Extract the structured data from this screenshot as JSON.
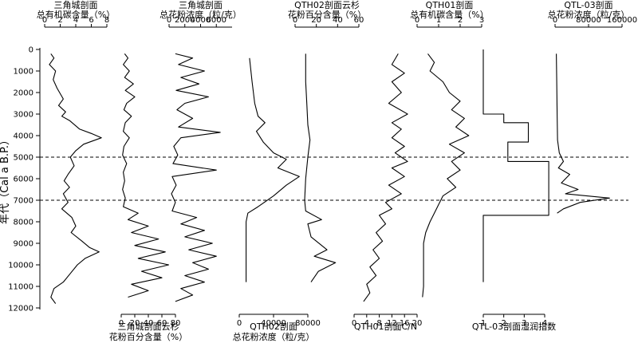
{
  "figure": {
    "y_axis_label": "年代（Cal a B.P.）",
    "y_ticks": [
      0,
      1000,
      2000,
      3000,
      4000,
      5000,
      6000,
      7000,
      8000,
      9000,
      10000,
      11000,
      12000
    ],
    "y_range": [
      0,
      12000
    ],
    "reference_lines": [
      5000,
      7000
    ]
  },
  "chart_data": [
    {
      "type": "line",
      "key": "p1",
      "title_lines": [
        "三角城剖面",
        "总有机碳含量（%）"
      ],
      "axis_pos": "top",
      "xlim": [
        0,
        8
      ],
      "ticks": [
        0,
        2,
        4,
        6,
        8
      ],
      "tick_labels": [
        "0",
        "2",
        "4",
        "6",
        "8"
      ],
      "points": [
        [
          0.8,
          200
        ],
        [
          1.2,
          400
        ],
        [
          0.6,
          700
        ],
        [
          1.4,
          1000
        ],
        [
          1.1,
          1400
        ],
        [
          1.6,
          1800
        ],
        [
          2.4,
          2300
        ],
        [
          1.8,
          2600
        ],
        [
          2.7,
          2900
        ],
        [
          2.2,
          3100
        ],
        [
          3.2,
          3300
        ],
        [
          4.5,
          3700
        ],
        [
          6.0,
          3900
        ],
        [
          7.3,
          4100
        ],
        [
          5.0,
          4400
        ],
        [
          4.0,
          4700
        ],
        [
          3.3,
          5000
        ],
        [
          3.8,
          5400
        ],
        [
          3.0,
          5800
        ],
        [
          2.5,
          6100
        ],
        [
          3.2,
          6400
        ],
        [
          2.4,
          6700
        ],
        [
          3.0,
          7100
        ],
        [
          2.2,
          7400
        ],
        [
          3.5,
          7800
        ],
        [
          4.0,
          8200
        ],
        [
          3.4,
          8500
        ],
        [
          4.8,
          8900
        ],
        [
          5.8,
          9200
        ],
        [
          7.0,
          9400
        ],
        [
          5.2,
          9700
        ],
        [
          4.2,
          10000
        ],
        [
          3.3,
          10400
        ],
        [
          2.4,
          10800
        ],
        [
          1.2,
          11100
        ],
        [
          0.8,
          11500
        ],
        [
          1.4,
          11800
        ]
      ]
    },
    {
      "type": "line",
      "key": "p2",
      "title_lines": [
        "三角城剖面云杉",
        "花粉百分含量（%）"
      ],
      "axis_pos": "bottom",
      "xlim": [
        0,
        80
      ],
      "ticks": [
        0,
        20,
        40,
        60,
        80
      ],
      "tick_labels": [
        "0",
        "20",
        "40",
        "60",
        "80"
      ],
      "points": [
        [
          5,
          200
        ],
        [
          10,
          400
        ],
        [
          3,
          700
        ],
        [
          12,
          1000
        ],
        [
          5,
          1300
        ],
        [
          18,
          1600
        ],
        [
          6,
          1900
        ],
        [
          20,
          2200
        ],
        [
          8,
          2500
        ],
        [
          4,
          2800
        ],
        [
          15,
          3100
        ],
        [
          6,
          3400
        ],
        [
          3,
          3800
        ],
        [
          12,
          4100
        ],
        [
          4,
          4500
        ],
        [
          2,
          4900
        ],
        [
          8,
          5300
        ],
        [
          3,
          5700
        ],
        [
          5,
          6100
        ],
        [
          2,
          6500
        ],
        [
          6,
          6900
        ],
        [
          3,
          7300
        ],
        [
          25,
          7600
        ],
        [
          10,
          7900
        ],
        [
          40,
          8200
        ],
        [
          15,
          8500
        ],
        [
          55,
          8800
        ],
        [
          20,
          9100
        ],
        [
          65,
          9400
        ],
        [
          25,
          9700
        ],
        [
          70,
          10000
        ],
        [
          30,
          10300
        ],
        [
          60,
          10600
        ],
        [
          15,
          10900
        ],
        [
          40,
          11200
        ],
        [
          10,
          11500
        ]
      ]
    },
    {
      "type": "line",
      "key": "p3",
      "title_lines": [
        "三角城剖面",
        "总花粉浓度（粒/克）"
      ],
      "axis_pos": "top",
      "xlim": [
        0,
        8000
      ],
      "ticks": [
        0,
        2000,
        4000,
        6000
      ],
      "tick_labels": [
        "0",
        "2000",
        "4000",
        "6000"
      ],
      "points": [
        [
          800,
          200
        ],
        [
          3000,
          400
        ],
        [
          1200,
          700
        ],
        [
          4500,
          1000
        ],
        [
          1500,
          1300
        ],
        [
          3800,
          1600
        ],
        [
          900,
          1900
        ],
        [
          5000,
          2200
        ],
        [
          2000,
          2500
        ],
        [
          1000,
          2800
        ],
        [
          3000,
          3200
        ],
        [
          1200,
          3600
        ],
        [
          6500,
          3850
        ],
        [
          1500,
          4100
        ],
        [
          600,
          4500
        ],
        [
          1100,
          4900
        ],
        [
          500,
          5300
        ],
        [
          6000,
          5600
        ],
        [
          400,
          5900
        ],
        [
          900,
          6300
        ],
        [
          300,
          6700
        ],
        [
          800,
          7100
        ],
        [
          400,
          7500
        ],
        [
          3500,
          7800
        ],
        [
          1500,
          8100
        ],
        [
          4500,
          8400
        ],
        [
          2000,
          8700
        ],
        [
          5500,
          9000
        ],
        [
          2500,
          9300
        ],
        [
          6000,
          9600
        ],
        [
          3000,
          9900
        ],
        [
          5000,
          10200
        ],
        [
          2000,
          10500
        ],
        [
          4500,
          10800
        ],
        [
          1500,
          11100
        ],
        [
          3000,
          11400
        ],
        [
          800,
          11700
        ]
      ]
    },
    {
      "type": "line",
      "key": "p4",
      "title_lines": [
        "QTH02剖面",
        "总花粉浓度（粒/克）"
      ],
      "axis_pos": "bottom",
      "xlim": [
        0,
        80000
      ],
      "ticks": [
        0,
        40000,
        80000
      ],
      "tick_labels": [
        "0",
        "40000",
        "80000"
      ],
      "points": [
        [
          12000,
          400
        ],
        [
          15000,
          1500
        ],
        [
          18000,
          2500
        ],
        [
          22000,
          3100
        ],
        [
          30000,
          3400
        ],
        [
          20000,
          3800
        ],
        [
          28000,
          4300
        ],
        [
          40000,
          4800
        ],
        [
          55000,
          5100
        ],
        [
          45000,
          5500
        ],
        [
          70000,
          5900
        ],
        [
          55000,
          6300
        ],
        [
          40000,
          6800
        ],
        [
          22000,
          7300
        ],
        [
          10000,
          7600
        ],
        [
          8000,
          8000
        ],
        [
          8000,
          9000
        ],
        [
          8000,
          10000
        ],
        [
          8000,
          10800
        ]
      ]
    },
    {
      "type": "line",
      "key": "p5",
      "title_lines": [
        "QTH02剖面云杉",
        "花粉百分含量（%）"
      ],
      "axis_pos": "top",
      "xlim": [
        0,
        60
      ],
      "ticks": [
        0,
        20,
        40,
        60
      ],
      "tick_labels": [
        "0",
        "20",
        "40",
        "60"
      ],
      "points": [
        [
          10,
          200
        ],
        [
          10,
          1500
        ],
        [
          11,
          2500
        ],
        [
          12,
          3500
        ],
        [
          14,
          4200
        ],
        [
          12,
          5000
        ],
        [
          10,
          6000
        ],
        [
          9,
          7000
        ],
        [
          10,
          7500
        ],
        [
          25,
          7900
        ],
        [
          12,
          8100
        ],
        [
          15,
          8700
        ],
        [
          30,
          9300
        ],
        [
          18,
          9600
        ],
        [
          38,
          9900
        ],
        [
          22,
          10300
        ],
        [
          15,
          10800
        ]
      ]
    },
    {
      "type": "line",
      "key": "p6",
      "title_lines": [
        "QTH01剖面C/N"
      ],
      "axis_pos": "bottom",
      "xlim": [
        0,
        20
      ],
      "ticks": [
        0,
        4,
        8,
        12,
        16,
        20
      ],
      "tick_labels": [
        "0",
        "4",
        "8",
        "12",
        "16",
        "20"
      ],
      "points": [
        [
          14,
          200
        ],
        [
          12,
          700
        ],
        [
          16,
          1100
        ],
        [
          12,
          1500
        ],
        [
          15,
          2000
        ],
        [
          11,
          2500
        ],
        [
          17,
          3000
        ],
        [
          12,
          3400
        ],
        [
          15,
          3700
        ],
        [
          12,
          4100
        ],
        [
          16,
          4500
        ],
        [
          13,
          4800
        ],
        [
          17,
          5200
        ],
        [
          12,
          5500
        ],
        [
          16,
          5900
        ],
        [
          11,
          6300
        ],
        [
          15,
          6700
        ],
        [
          10,
          7100
        ],
        [
          12,
          7400
        ],
        [
          8,
          7700
        ],
        [
          10,
          8100
        ],
        [
          7,
          8500
        ],
        [
          9,
          8900
        ],
        [
          6,
          9300
        ],
        [
          8,
          9700
        ],
        [
          5,
          10100
        ],
        [
          7,
          10500
        ],
        [
          4,
          10900
        ],
        [
          5,
          11300
        ],
        [
          3,
          11700
        ]
      ]
    },
    {
      "type": "line",
      "key": "p7",
      "title_lines": [
        "QTH01剖面",
        "总有机碳含量（%）"
      ],
      "axis_pos": "top",
      "xlim": [
        0,
        3
      ],
      "ticks": [
        0,
        1,
        2,
        3
      ],
      "tick_labels": [
        "0",
        "1",
        "2",
        "3"
      ],
      "points": [
        [
          0.5,
          200
        ],
        [
          0.8,
          600
        ],
        [
          0.6,
          1000
        ],
        [
          1.2,
          1500
        ],
        [
          1.5,
          2000
        ],
        [
          2.0,
          2400
        ],
        [
          1.6,
          2800
        ],
        [
          2.2,
          3200
        ],
        [
          1.8,
          3600
        ],
        [
          2.4,
          4000
        ],
        [
          1.5,
          4400
        ],
        [
          2.2,
          4800
        ],
        [
          1.6,
          5200
        ],
        [
          2.0,
          5600
        ],
        [
          1.4,
          6000
        ],
        [
          1.8,
          6400
        ],
        [
          1.2,
          6800
        ],
        [
          1.0,
          7200
        ],
        [
          0.8,
          7600
        ],
        [
          0.6,
          8000
        ],
        [
          0.4,
          8500
        ],
        [
          0.3,
          9000
        ],
        [
          0.3,
          10000
        ],
        [
          0.3,
          11000
        ],
        [
          0.25,
          11500
        ]
      ]
    },
    {
      "type": "line",
      "key": "p8",
      "title_lines": [
        "QTL-03剖面湿润指数"
      ],
      "axis_pos": "bottom",
      "xlim": [
        1,
        4
      ],
      "ticks": [
        1,
        2,
        3,
        4
      ],
      "tick_labels": [
        "1",
        "2",
        "3",
        "4"
      ],
      "points": [
        [
          1,
          0
        ],
        [
          1,
          3000
        ],
        [
          2,
          3000
        ],
        [
          2,
          3400
        ],
        [
          3.2,
          3400
        ],
        [
          3.2,
          4300
        ],
        [
          2.2,
          4300
        ],
        [
          2.2,
          5200
        ],
        [
          4.2,
          5200
        ],
        [
          4.2,
          7700
        ],
        [
          1,
          7700
        ],
        [
          1,
          10800
        ]
      ]
    },
    {
      "type": "line",
      "key": "p9",
      "title_lines": [
        "QTL-03剖面",
        "总花粉浓度（粒/克）"
      ],
      "axis_pos": "top",
      "xlim": [
        0,
        160000
      ],
      "ticks": [
        0,
        80000,
        160000
      ],
      "tick_labels": [
        "0",
        "80000",
        "160000"
      ],
      "points": [
        [
          3000,
          200
        ],
        [
          4000,
          1500
        ],
        [
          5000,
          3000
        ],
        [
          6000,
          4200
        ],
        [
          10000,
          4800
        ],
        [
          20000,
          5200
        ],
        [
          8000,
          5500
        ],
        [
          35000,
          5800
        ],
        [
          15000,
          6200
        ],
        [
          55000,
          6500
        ],
        [
          25000,
          6700
        ],
        [
          130000,
          6900
        ],
        [
          60000,
          7100
        ],
        [
          20000,
          7400
        ],
        [
          5000,
          7600
        ]
      ]
    }
  ]
}
